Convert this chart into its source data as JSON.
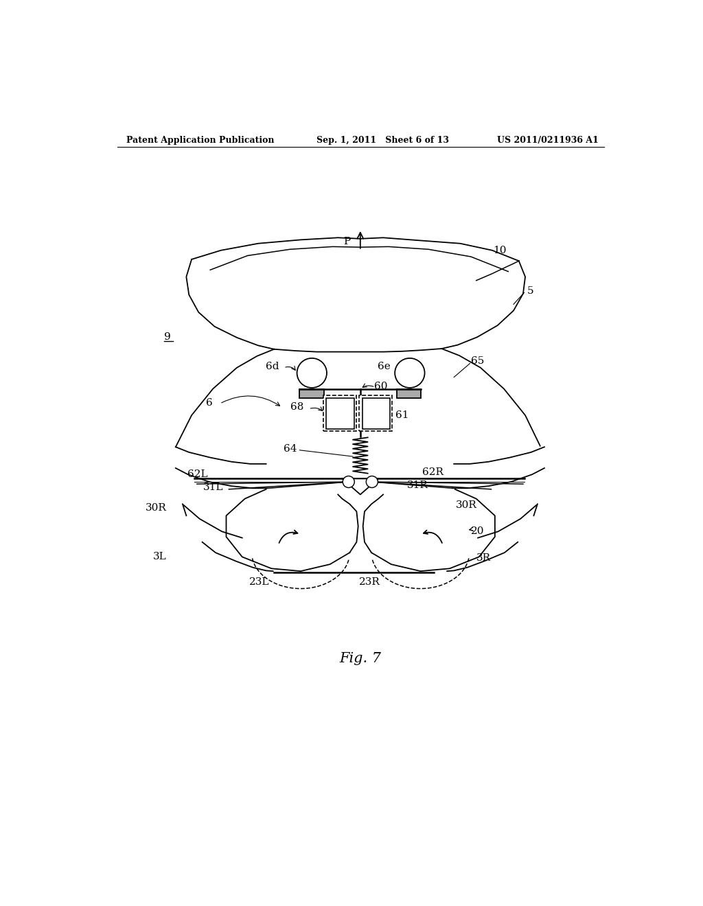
{
  "bg_color": "#ffffff",
  "header_left": "Patent Application Publication",
  "header_mid": "Sep. 1, 2011   Sheet 6 of 13",
  "header_right": "US 2011/0211936 A1",
  "caption": "Fig. 7"
}
